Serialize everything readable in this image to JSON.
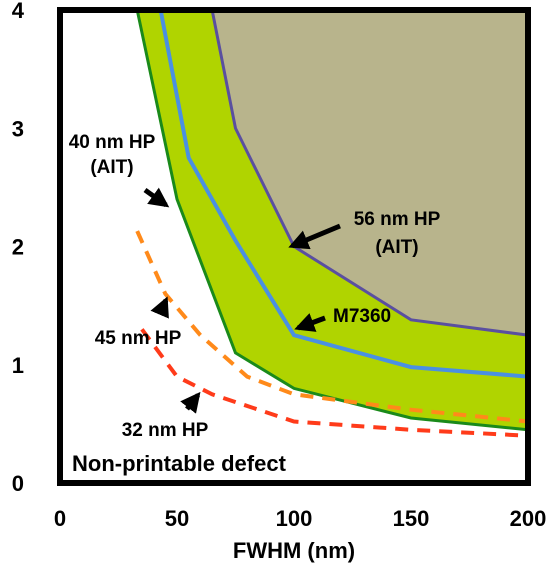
{
  "chart_data": {
    "type": "area",
    "xlabel": "FWHM (nm)",
    "ylabel": "",
    "xlim": [
      0,
      200
    ],
    "ylim": [
      0,
      4
    ],
    "x_ticks": [
      "0",
      "50",
      "100",
      "150",
      "200"
    ],
    "y_ticks": [
      "0",
      "1",
      "2",
      "3",
      "4"
    ],
    "grid": false,
    "colors": {
      "non_printable_region": "#ffffff",
      "band_fill": "#b0d400",
      "band_edge": "#1a8a1a",
      "m7360_line": "#4a90e2",
      "upper_region_fill": "#b8b48c",
      "upper_edge": "#5a4fa0",
      "hp45_line": "#ff8a1a",
      "hp32_line": "#ff3b1a"
    },
    "series": [
      {
        "key": "band_lower",
        "x": [
          33,
          50,
          75,
          100,
          150,
          200
        ],
        "y": [
          4.0,
          2.4,
          1.1,
          0.8,
          0.55,
          0.45
        ]
      },
      {
        "key": "m7360",
        "x": [
          43,
          55,
          75,
          100,
          150,
          200
        ],
        "y": [
          4.0,
          2.75,
          2.05,
          1.25,
          0.98,
          0.9
        ]
      },
      {
        "key": "band_upper",
        "x": [
          65,
          75,
          100,
          150,
          200
        ],
        "y": [
          4.0,
          3.0,
          2.0,
          1.38,
          1.25
        ]
      },
      {
        "key": "hp45",
        "x": [
          33,
          45,
          60,
          80,
          100,
          150,
          200
        ],
        "y": [
          2.13,
          1.6,
          1.25,
          0.9,
          0.75,
          0.62,
          0.52
        ]
      },
      {
        "key": "hp32",
        "x": [
          35,
          50,
          65,
          100,
          150,
          200
        ],
        "y": [
          1.3,
          0.9,
          0.75,
          0.52,
          0.45,
          0.4
        ]
      }
    ],
    "annotations": [
      {
        "key": "hp40",
        "lines": [
          "40 nm HP",
          "(AIT)"
        ]
      },
      {
        "key": "hp56",
        "lines": [
          "56 nm HP",
          "(AIT)"
        ]
      },
      {
        "key": "m7360",
        "lines": [
          "M7360"
        ]
      },
      {
        "key": "hp45",
        "lines": [
          "45 nm HP"
        ]
      },
      {
        "key": "hp32",
        "lines": [
          "32 nm HP"
        ]
      }
    ],
    "region_label": "Non-printable defect"
  }
}
